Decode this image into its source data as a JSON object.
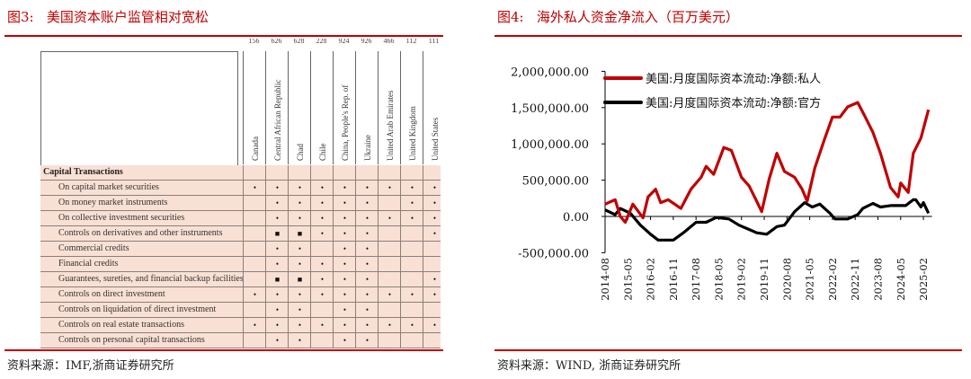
{
  "left_panel": {
    "title": "图3:   美国资本账户监管相对宽松",
    "source": "资料来源：IMF,浙商证券研究所",
    "table": {
      "country_codes": [
        "156",
        "626",
        "628",
        "228",
        "924",
        "926",
        "466",
        "112",
        "111"
      ],
      "countries": [
        "Canada",
        "Central African Republic",
        "Chad",
        "Chile",
        "China, People's Rep. of",
        "Ukraine",
        "United Arab Emirates",
        "United Kingdom",
        "United States"
      ],
      "section": "Capital Transactions",
      "symbols": {
        "1": "•",
        "2": "■"
      },
      "rows": [
        {
          "label": "On capital market securities",
          "marks": [
            1,
            1,
            1,
            1,
            1,
            1,
            1,
            1,
            1
          ]
        },
        {
          "label": "On money market instruments",
          "marks": [
            0,
            1,
            1,
            1,
            1,
            1,
            0,
            1,
            1
          ]
        },
        {
          "label": "On collective investment securities",
          "marks": [
            0,
            1,
            1,
            1,
            1,
            1,
            1,
            1,
            1
          ]
        },
        {
          "label": "Controls on derivatives and other instruments",
          "marks": [
            0,
            2,
            2,
            1,
            1,
            1,
            0,
            0,
            1
          ]
        },
        {
          "label": "Commercial credits",
          "marks": [
            0,
            1,
            1,
            0,
            1,
            1,
            0,
            0,
            0
          ]
        },
        {
          "label": "Financial credits",
          "marks": [
            0,
            1,
            1,
            1,
            1,
            1,
            0,
            0,
            0
          ]
        },
        {
          "label": "Guarantees, sureties, and financial backup facilities",
          "marks": [
            0,
            2,
            2,
            1,
            1,
            1,
            0,
            0,
            1
          ]
        },
        {
          "label": "Controls on direct investment",
          "marks": [
            1,
            1,
            1,
            1,
            1,
            1,
            1,
            1,
            1
          ]
        },
        {
          "label": "Controls on liquidation of direct investment",
          "marks": [
            0,
            1,
            1,
            0,
            1,
            1,
            0,
            0,
            0
          ]
        },
        {
          "label": "Controls on real estate transactions",
          "marks": [
            1,
            1,
            1,
            1,
            1,
            1,
            1,
            1,
            1
          ]
        },
        {
          "label": "Controls on personal capital transactions",
          "marks": [
            0,
            1,
            1,
            0,
            1,
            1,
            0,
            0,
            0
          ]
        }
      ]
    }
  },
  "right_panel": {
    "title": "图4:   海外私人资金净流入（百万美元）",
    "source": "资料来源：WIND, 浙商证券研究所"
  },
  "colors": {
    "accent": "#c00000",
    "private": "#c00000",
    "official": "#000000",
    "table_bg": "#f9e0d4"
  },
  "chart_data": {
    "type": "line",
    "title": "海外私人资金净流入（百万美元）",
    "xlabel": "",
    "ylabel": "",
    "ylim": [
      -500000,
      2000000
    ],
    "yticks": [
      2000000,
      1500000,
      1000000,
      500000,
      0,
      -500000
    ],
    "ytick_labels": [
      "2,000,000.00",
      "1,500,000.00",
      "1,000,000.00",
      "500,000.00",
      "0.00",
      "-500,000.00"
    ],
    "xlim": [
      "2014-08",
      "2025-04"
    ],
    "xtick_labels": [
      "2014-08",
      "2015-05",
      "2016-02",
      "2016-11",
      "2017-08",
      "2018-05",
      "2019-02",
      "2019-11",
      "2020-08",
      "2021-05",
      "2022-02",
      "2022-11",
      "2023-08",
      "2024-05",
      "2025-02"
    ],
    "legend_position": "top-left",
    "series": [
      {
        "name": "美国:月度国际资本流动:净额:私人",
        "color": "#c00000",
        "x": [
          "2014-08",
          "2014-12",
          "2015-02",
          "2015-04",
          "2015-07",
          "2015-11",
          "2016-01",
          "2016-04",
          "2016-06",
          "2016-09",
          "2017-02",
          "2017-06",
          "2017-10",
          "2017-12",
          "2018-03",
          "2018-07",
          "2018-10",
          "2019-02",
          "2019-05",
          "2019-08",
          "2019-10",
          "2020-01",
          "2020-04",
          "2020-07",
          "2020-11",
          "2021-02",
          "2021-04",
          "2021-07",
          "2021-11",
          "2022-02",
          "2022-05",
          "2022-08",
          "2022-12",
          "2023-03",
          "2023-06",
          "2023-09",
          "2024-01",
          "2024-04",
          "2024-05",
          "2024-08",
          "2024-10",
          "2025-01",
          "2025-04"
        ],
        "values": [
          170000,
          230000,
          0,
          -80000,
          170000,
          -20000,
          270000,
          375000,
          190000,
          230000,
          110000,
          375000,
          540000,
          690000,
          580000,
          950000,
          910000,
          540000,
          420000,
          210000,
          65000,
          520000,
          870000,
          620000,
          540000,
          375000,
          210000,
          665000,
          1080000,
          1370000,
          1370000,
          1510000,
          1570000,
          1370000,
          1160000,
          870000,
          400000,
          270000,
          460000,
          330000,
          870000,
          1080000,
          1470000
        ]
      },
      {
        "name": "美国:月度国际资本流动:净额:官方",
        "color": "#000000",
        "x": [
          "2014-08",
          "2014-12",
          "2015-02",
          "2015-06",
          "2015-10",
          "2016-02",
          "2016-05",
          "2016-11",
          "2017-03",
          "2017-08",
          "2017-12",
          "2018-04",
          "2018-09",
          "2019-01",
          "2019-05",
          "2019-08",
          "2019-12",
          "2020-04",
          "2020-07",
          "2020-11",
          "2021-03",
          "2021-06",
          "2021-09",
          "2022-01",
          "2022-03",
          "2022-08",
          "2022-12",
          "2023-02",
          "2023-06",
          "2023-09",
          "2024-01",
          "2024-07",
          "2024-10",
          "2024-11",
          "2025-01",
          "2025-02",
          "2025-04"
        ],
        "values": [
          90000,
          25000,
          110000,
          45000,
          -120000,
          -245000,
          -325000,
          -325000,
          -225000,
          -80000,
          -80000,
          -15000,
          -35000,
          -120000,
          -180000,
          -225000,
          -245000,
          -140000,
          -120000,
          65000,
          190000,
          130000,
          170000,
          45000,
          -35000,
          -35000,
          25000,
          110000,
          180000,
          130000,
          150000,
          150000,
          230000,
          230000,
          130000,
          190000,
          45000
        ]
      }
    ]
  }
}
